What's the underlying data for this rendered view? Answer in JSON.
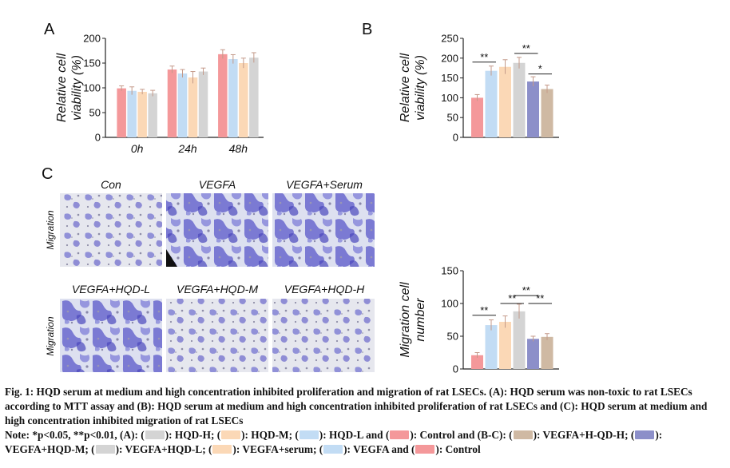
{
  "colors": {
    "control": "#f4989a",
    "hqdl": "#c2dcf4",
    "hqdm": "#fbd8b6",
    "hqdh": "#d4d4d4",
    "vegfa": "#c2dcf4",
    "serum": "#fbd8b6",
    "hqdl_b": "#d4d4d4",
    "hqdm_b": "#8c8fc9",
    "hqdh_b": "#cfb9a3",
    "error": "#c49a8a"
  },
  "panels": {
    "a": "A",
    "b": "B",
    "c": "C"
  },
  "chart_data": [
    {
      "id": "A",
      "type": "bar",
      "ylabel": "Relative cell viability (%)",
      "ylim": [
        0,
        200
      ],
      "yticks": [
        0,
        50,
        100,
        150,
        200
      ],
      "categories": [
        "0h",
        "24h",
        "48h"
      ],
      "series": [
        {
          "name": "Control",
          "color": "control",
          "values": [
            99,
            137,
            168
          ],
          "errors": [
            5,
            7,
            9
          ]
        },
        {
          "name": "HQD-L",
          "color": "hqdl",
          "values": [
            94,
            129,
            158
          ],
          "errors": [
            8,
            8,
            9
          ]
        },
        {
          "name": "HQD-M",
          "color": "hqdm",
          "values": [
            92,
            121,
            150
          ],
          "errors": [
            5,
            12,
            10
          ]
        },
        {
          "name": "HQD-H",
          "color": "hqdh",
          "values": [
            89,
            133,
            161
          ],
          "errors": [
            6,
            7,
            10
          ]
        }
      ]
    },
    {
      "id": "B",
      "type": "bar",
      "ylabel": "Relative cell viability (%)",
      "ylim": [
        0,
        250
      ],
      "yticks": [
        0,
        50,
        100,
        150,
        200,
        250
      ],
      "categories": [
        "Control",
        "VEGFA",
        "VEGFA+serum",
        "VEGFA+HQD-L",
        "VEGFA+HQD-M",
        "VEGFA+HQD-H"
      ],
      "colors": [
        "control",
        "vegfa",
        "serum",
        "hqdl_b",
        "hqdm_b",
        "hqdh_b"
      ],
      "values": [
        100,
        168,
        178,
        188,
        141,
        122
      ],
      "errors": [
        8,
        12,
        18,
        14,
        12,
        10
      ],
      "significance": [
        {
          "from": 0,
          "to": 1,
          "label": "**",
          "at": 190
        },
        {
          "from": 3,
          "to": 4,
          "label": "**",
          "at": 212
        },
        {
          "from": 4,
          "to": 5,
          "label": "*",
          "at": 160
        }
      ]
    },
    {
      "id": "C",
      "type": "bar",
      "ylabel": "Migration cell number",
      "ylim": [
        0,
        150
      ],
      "yticks": [
        0,
        50,
        100,
        150
      ],
      "categories": [
        "Control",
        "VEGFA",
        "VEGFA+serum",
        "VEGFA+HQD-L",
        "VEGFA+HQD-M",
        "VEGFA+HQD-H"
      ],
      "colors": [
        "control",
        "vegfa",
        "serum",
        "hqdl_b",
        "hqdm_b",
        "hqdh_b"
      ],
      "values": [
        21,
        67,
        72,
        88,
        46,
        49
      ],
      "errors": [
        4,
        8,
        9,
        11,
        4,
        5
      ],
      "significance": [
        {
          "from": 0,
          "to": 1,
          "label": "**",
          "at": 82
        },
        {
          "from": 2,
          "to": 3,
          "label": "**",
          "at": 100
        },
        {
          "from": 3,
          "to": 4,
          "label": "**",
          "at": 112
        },
        {
          "from": 4,
          "to": 5,
          "label": "**",
          "at": 100
        }
      ]
    }
  ],
  "micrographs": {
    "row_label": "Migration",
    "row1": [
      "Con",
      "VEGFA",
      "VEGFA+Serum"
    ],
    "row2": [
      "VEGFA+HQD-L",
      "VEGFA+HQD-M",
      "VEGFA+HQD-H"
    ]
  },
  "caption": {
    "title": "Fig. 1: HQD serum at medium and high concentration inhibited proliferation and migration of rat LSECs. (A): HQD serum was non-toxic to rat LSECs according to MTT assay and (B): HQD serum at medium and high concentration inhibited proliferation of rat LSECs and (C): HQD serum at medium and high concentration inhibited migration of rat LSECs",
    "note_prefix": "Note: *p<0.05, **p<0.01, (A): (",
    "hqdh": "): HQD-H; (",
    "hqdm": "): HQD-M; (",
    "hqdl": "): HQD-L and (",
    "control_a": "): Control and (B-C): (",
    "vegfa_hqdh": "): VEGFA+H-QD-H; (",
    "vegfa_hqdm": "): VEGFA+HQD-M; (",
    "vegfa_hqdl": "): VEGFA+HQD-L; (",
    "vegfa_serum": "): VEGFA+serum; (",
    "vegfa": "): VEGFA and (",
    "control_bc": "): Control"
  }
}
